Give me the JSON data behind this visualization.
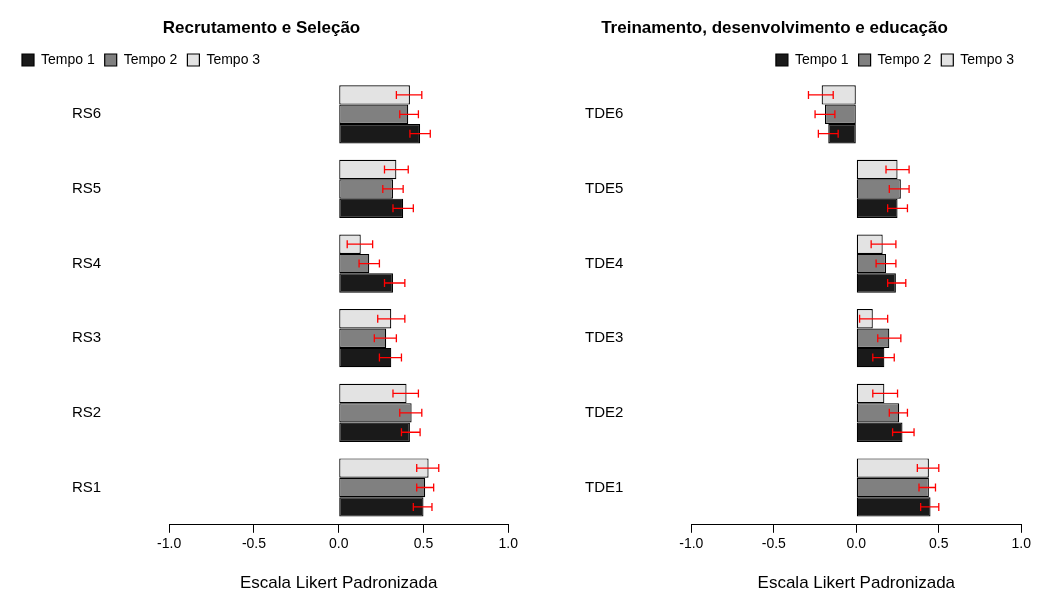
{
  "chart_data": [
    {
      "type": "bar",
      "orientation": "horizontal",
      "title": "Recrutamento e Seleção",
      "xlabel": "Escala Likert Padronizada",
      "categories": [
        "RS6",
        "RS5",
        "RS4",
        "RS3",
        "RS2",
        "RS1"
      ],
      "xlim": [
        -1,
        1
      ],
      "xticks": [
        {
          "value": -1,
          "label": "-1.0"
        },
        {
          "value": -0.5,
          "label": "-0.5"
        },
        {
          "value": 0,
          "label": "0.0"
        },
        {
          "value": 0.5,
          "label": "0.5"
        },
        {
          "value": 1,
          "label": "1.0"
        }
      ],
      "grid": false,
      "legend": "top left",
      "series": [
        {
          "name": "Tempo 1",
          "color": "#1a1a1a",
          "values": [
            0.48,
            0.38,
            0.32,
            0.31,
            0.42,
            0.5
          ],
          "errors": [
            [
              0.42,
              0.54
            ],
            [
              0.32,
              0.44
            ],
            [
              0.27,
              0.39
            ],
            [
              0.24,
              0.37
            ],
            [
              0.37,
              0.48
            ],
            [
              0.44,
              0.55
            ]
          ]
        },
        {
          "name": "Tempo 2",
          "color": "#808080",
          "values": [
            0.41,
            0.32,
            0.18,
            0.28,
            0.43,
            0.51
          ],
          "errors": [
            [
              0.36,
              0.47
            ],
            [
              0.26,
              0.38
            ],
            [
              0.12,
              0.24
            ],
            [
              0.21,
              0.34
            ],
            [
              0.36,
              0.49
            ],
            [
              0.46,
              0.56
            ]
          ]
        },
        {
          "name": "Tempo 3",
          "color": "#e3e3e3",
          "values": [
            0.42,
            0.34,
            0.13,
            0.31,
            0.4,
            0.53
          ],
          "errors": [
            [
              0.34,
              0.49
            ],
            [
              0.27,
              0.41
            ],
            [
              0.05,
              0.2
            ],
            [
              0.23,
              0.39
            ],
            [
              0.32,
              0.47
            ],
            [
              0.46,
              0.59
            ]
          ]
        }
      ]
    },
    {
      "type": "bar",
      "orientation": "horizontal",
      "title": "Treinamento, desenvolvimento e educação",
      "xlabel": "Escala Likert Padronizada",
      "categories": [
        "TDE6",
        "TDE5",
        "TDE4",
        "TDE3",
        "TDE2",
        "TDE1"
      ],
      "xlim": [
        -1,
        1
      ],
      "xticks": [
        {
          "value": -1,
          "label": "-1.0"
        },
        {
          "value": -0.5,
          "label": "-0.5"
        },
        {
          "value": 0,
          "label": "0.0"
        },
        {
          "value": 0.5,
          "label": "0.5"
        },
        {
          "value": 1,
          "label": "1.0"
        }
      ],
      "grid": false,
      "legend": "top right",
      "series": [
        {
          "name": "Tempo 1",
          "color": "#1a1a1a",
          "values": [
            -0.17,
            0.25,
            0.24,
            0.17,
            0.28,
            0.45
          ],
          "errors": [
            [
              -0.23,
              -0.11
            ],
            [
              0.19,
              0.31
            ],
            [
              0.19,
              0.3
            ],
            [
              0.1,
              0.23
            ],
            [
              0.22,
              0.35
            ],
            [
              0.39,
              0.5
            ]
          ]
        },
        {
          "name": "Tempo 2",
          "color": "#808080",
          "values": [
            -0.19,
            0.27,
            0.18,
            0.2,
            0.26,
            0.44
          ],
          "errors": [
            [
              -0.25,
              -0.13
            ],
            [
              0.2,
              0.32
            ],
            [
              0.12,
              0.24
            ],
            [
              0.13,
              0.27
            ],
            [
              0.2,
              0.31
            ],
            [
              0.38,
              0.48
            ]
          ]
        },
        {
          "name": "Tempo 3",
          "color": "#e3e3e3",
          "values": [
            -0.21,
            0.25,
            0.16,
            0.1,
            0.17,
            0.44
          ],
          "errors": [
            [
              -0.29,
              -0.14
            ],
            [
              0.18,
              0.32
            ],
            [
              0.09,
              0.24
            ],
            [
              0.02,
              0.19
            ],
            [
              0.1,
              0.25
            ],
            [
              0.37,
              0.5
            ]
          ]
        }
      ]
    }
  ]
}
